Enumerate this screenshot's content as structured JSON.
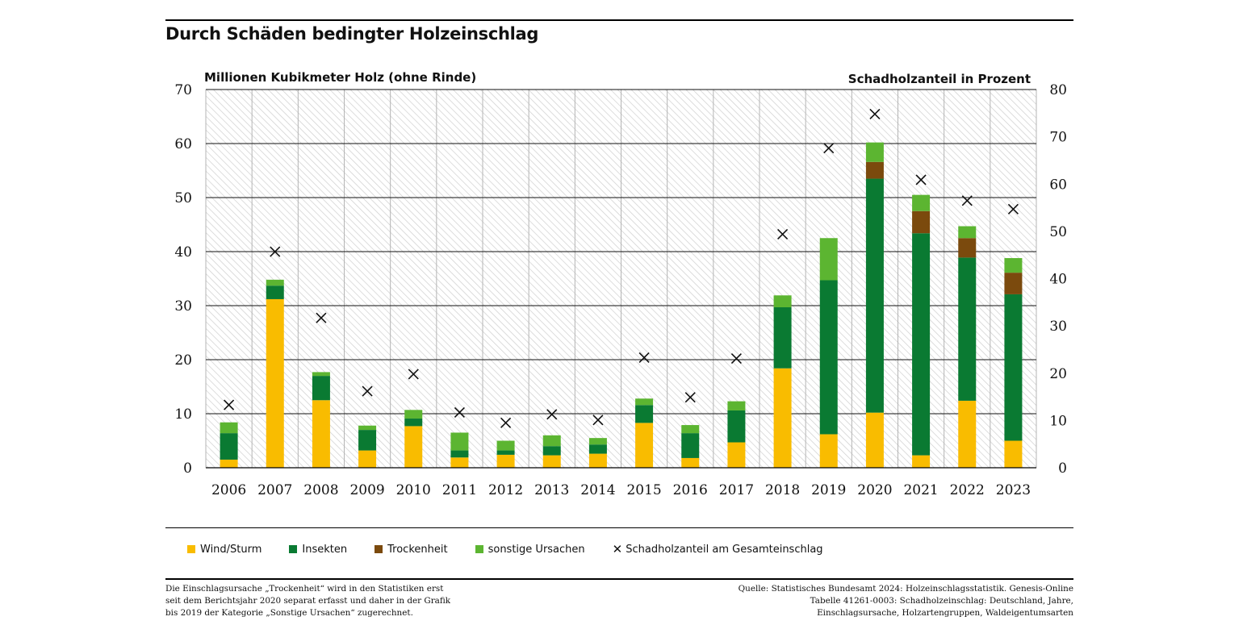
{
  "header": {
    "title": "Durch Schäden bedingter Holzeinschlag"
  },
  "chart_data": {
    "type": "bar",
    "stacked": true,
    "y_left_label": "Millionen Kubikmeter Holz (ohne Rinde)",
    "y_right_label": "Schadholzanteil in Prozent",
    "ylim_left": [
      0,
      70
    ],
    "ylim_right": [
      0,
      80
    ],
    "yticks_left": [
      "0",
      "10",
      "20",
      "30",
      "40",
      "50",
      "60",
      "70"
    ],
    "yticks_right": [
      "0",
      "10",
      "20",
      "30",
      "40",
      "50",
      "60",
      "70",
      "80"
    ],
    "grid": true,
    "legend_position": "bottom",
    "categories": [
      "2006",
      "2007",
      "2008",
      "2009",
      "2010",
      "2011",
      "2012",
      "2013",
      "2014",
      "2015",
      "2016",
      "2017",
      "2018",
      "2019",
      "2020",
      "2021",
      "2022",
      "2023"
    ],
    "series": [
      {
        "name": "Wind/Sturm",
        "color": "#f9bc00",
        "values": [
          1.5,
          31.2,
          12.5,
          3.2,
          7.7,
          1.9,
          2.4,
          2.3,
          2.6,
          8.3,
          1.8,
          4.7,
          18.4,
          6.2,
          10.2,
          2.3,
          12.4,
          5.0
        ]
      },
      {
        "name": "Insekten",
        "color": "#0a7a32",
        "values": [
          4.9,
          2.5,
          4.5,
          3.8,
          1.4,
          1.3,
          0.8,
          1.7,
          1.7,
          3.3,
          4.6,
          5.9,
          11.3,
          28.5,
          43.3,
          41.1,
          26.5,
          27.1
        ]
      },
      {
        "name": "Trockenheit",
        "color": "#7b4a0d",
        "values": [
          0,
          0,
          0,
          0,
          0,
          0,
          0,
          0,
          0,
          0,
          0,
          0,
          0,
          0,
          3.1,
          4.1,
          3.6,
          4.0
        ]
      },
      {
        "name": "sonstige Ursachen",
        "color": "#5cb531",
        "values": [
          2.0,
          1.1,
          0.7,
          0.8,
          1.6,
          3.3,
          1.8,
          2.0,
          1.2,
          1.2,
          1.5,
          1.7,
          2.2,
          7.8,
          3.6,
          3.0,
          2.2,
          2.7
        ]
      }
    ],
    "line_series": {
      "name": "Schadholzanteil am Gesamteinschlag",
      "axis": "right",
      "marker": "x",
      "values": [
        13.3,
        45.7,
        31.7,
        16.2,
        19.8,
        11.7,
        9.5,
        11.3,
        10.1,
        23.3,
        14.9,
        23.1,
        49.4,
        67.6,
        74.8,
        60.9,
        56.5,
        54.7
      ]
    }
  },
  "legend": {
    "items": [
      "Wind/Sturm",
      "Insekten",
      "Trockenheit",
      "sonstige Ursachen",
      "Schadholzanteil am Gesamteinschlag"
    ]
  },
  "footer": {
    "note": "Die Einschlagsursache „Trockenheit“ wird in den Statistiken erst\nseit dem Berichtsjahr 2020 separat erfasst und daher in der Grafik\nbis 2019 der Kategorie „Sonstige Ursachen“ zugerechnet.",
    "source": "Quelle: Statistisches Bundesamt 2024: Holzeinschlagsstatistik. Genesis-Online\nTabelle 41261-0003: Schadholzeinschlag: Deutschland, Jahre,\nEinschlagsursache, Holzartengruppen, Waldeigentumsarten"
  }
}
